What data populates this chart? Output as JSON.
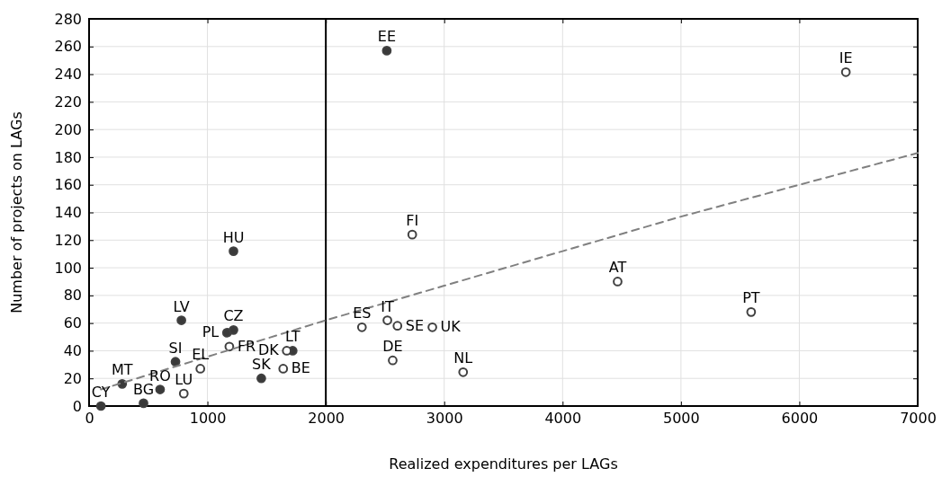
{
  "chart_data": {
    "type": "scatter",
    "xlabel": "Realized expenditures per LAGs",
    "ylabel": "Number of projects on LAGs",
    "xlim": [
      0,
      7000
    ],
    "xticks": [
      0,
      1000,
      2000,
      3000,
      4000,
      5000,
      6000,
      7000
    ],
    "ylim": [
      0,
      280
    ],
    "yticks": [
      0,
      20,
      40,
      60,
      80,
      100,
      120,
      140,
      160,
      180,
      200,
      220,
      240,
      260,
      280
    ],
    "grid": true,
    "series": [
      {
        "color": "#3a3a3a",
        "marker": "circle",
        "x": [
          100,
          460,
          280,
          600,
          730,
          780,
          1165,
          1220,
          1220,
          1455,
          1720,
          2515
        ],
        "values": [
          0,
          2,
          16,
          12,
          32,
          62,
          53,
          55,
          112,
          20,
          40,
          257
        ]
      },
      {
        "color": "#ffffff",
        "marker": "circle",
        "x": [
          940,
          800,
          1185,
          1670,
          1640,
          2305,
          2520,
          2605,
          2900,
          2565,
          3160,
          2730,
          4465,
          5593,
          6393
        ],
        "values": [
          27,
          9,
          43,
          40,
          27,
          57,
          62,
          58,
          57,
          33,
          24.5,
          124,
          90,
          68,
          241.5
        ]
      },
      {
        "type": "line",
        "color": "#808080",
        "line_style": "dashed",
        "x": [
          100,
          2000,
          3000,
          4000,
          5000,
          6000,
          7000
        ],
        "values": [
          12,
          62,
          87,
          112,
          137,
          160,
          183
        ]
      }
    ],
    "ref_lines": [
      {
        "axis": "x",
        "value": 2000,
        "color": "#000000",
        "line_style": "solid"
      }
    ],
    "annotations": [
      {
        "text": "CY",
        "x": 100,
        "y": 0
      },
      {
        "text": "BG",
        "x": 460,
        "y": 2
      },
      {
        "text": "MT",
        "x": 280,
        "y": 16
      },
      {
        "text": "RO",
        "x": 600,
        "y": 12
      },
      {
        "text": "SI",
        "x": 730,
        "y": 32
      },
      {
        "text": "LV",
        "x": 780,
        "y": 62
      },
      {
        "text": "PL",
        "x": 1165,
        "y": 53
      },
      {
        "text": "CZ",
        "x": 1220,
        "y": 55
      },
      {
        "text": "HU",
        "x": 1220,
        "y": 112
      },
      {
        "text": "SK",
        "x": 1455,
        "y": 20
      },
      {
        "text": "LT",
        "x": 1720,
        "y": 40
      },
      {
        "text": "EE",
        "x": 2515,
        "y": 257
      },
      {
        "text": "EL",
        "x": 940,
        "y": 27
      },
      {
        "text": "LU",
        "x": 800,
        "y": 9
      },
      {
        "text": "FR",
        "x": 1185,
        "y": 43
      },
      {
        "text": "DK",
        "x": 1670,
        "y": 40
      },
      {
        "text": "BE",
        "x": 1640,
        "y": 27
      },
      {
        "text": "ES",
        "x": 2305,
        "y": 57
      },
      {
        "text": "IT",
        "x": 2520,
        "y": 62
      },
      {
        "text": "SE",
        "x": 2605,
        "y": 58
      },
      {
        "text": "UK",
        "x": 2900,
        "y": 57
      },
      {
        "text": "DE",
        "x": 2565,
        "y": 33
      },
      {
        "text": "NL",
        "x": 3160,
        "y": 24.5
      },
      {
        "text": "FI",
        "x": 2730,
        "y": 124
      },
      {
        "text": "AT",
        "x": 4465,
        "y": 90
      },
      {
        "text": "PT",
        "x": 5593,
        "y": 68
      },
      {
        "text": "IE",
        "x": 6393,
        "y": 241.5
      }
    ]
  }
}
